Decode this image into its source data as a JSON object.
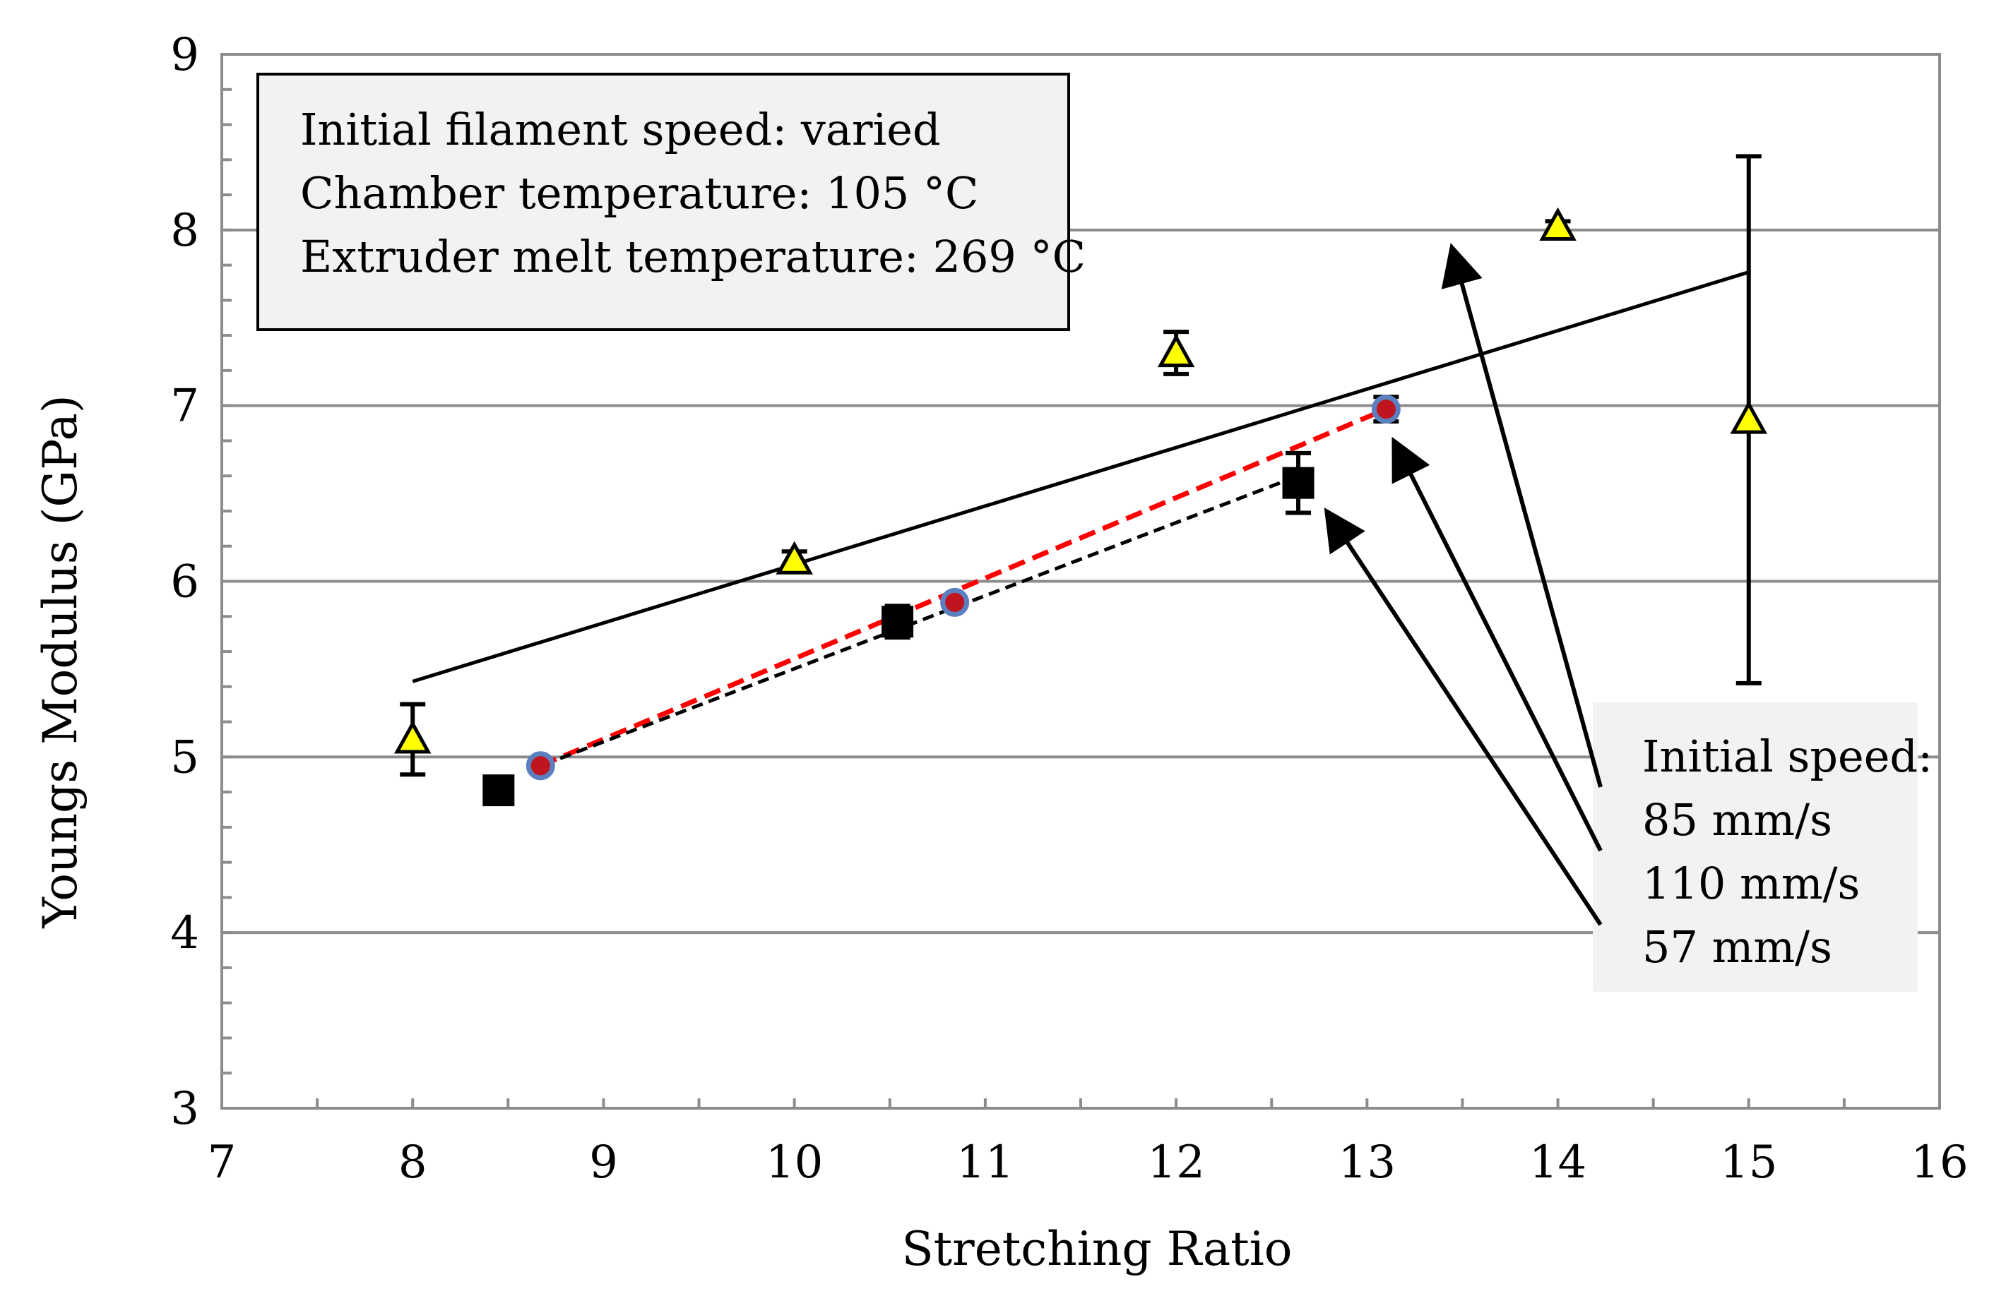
{
  "chart_data": {
    "type": "scatter",
    "title": "",
    "xlabel": "Stretching Ratio",
    "ylabel": "Youngs Modulus (GPa)",
    "xlim": [
      7,
      16
    ],
    "ylim": [
      3,
      9
    ],
    "x_ticks": [
      7,
      8,
      9,
      10,
      11,
      12,
      13,
      14,
      15,
      16
    ],
    "y_ticks": [
      3,
      4,
      5,
      6,
      7,
      8,
      9
    ],
    "x_minor_step": 0.5,
    "y_minor_step": 0.2,
    "grid": true,
    "series": [
      {
        "name": "85 mm/s",
        "marker": "triangle",
        "color": "#ffff00",
        "points": [
          {
            "x": 8.0,
            "y": 5.1,
            "err": 0.2
          },
          {
            "x": 10.0,
            "y": 6.12,
            "err": 0.05
          },
          {
            "x": 12.0,
            "y": 7.3,
            "err": 0.12
          },
          {
            "x": 14.0,
            "y": 8.02,
            "err": 0.03
          },
          {
            "x": 15.0,
            "y": 6.92,
            "err": 1.5
          }
        ],
        "trendline": {
          "from": [
            8.0,
            5.43
          ],
          "to": [
            15.0,
            7.76
          ],
          "style": "solid",
          "color": "#000000"
        }
      },
      {
        "name": "110 mm/s",
        "marker": "circle",
        "color": "#c0141e",
        "edge_color": "#5b7fbf",
        "points": [
          {
            "x": 8.67,
            "y": 4.95,
            "err": 0.02
          },
          {
            "x": 10.84,
            "y": 5.88,
            "err": 0.02
          },
          {
            "x": 13.1,
            "y": 6.98,
            "err": 0.07
          }
        ],
        "trendline": {
          "from": [
            8.67,
            4.95
          ],
          "to": [
            13.1,
            6.98
          ],
          "style": "dashed",
          "color": "#ff0000"
        }
      },
      {
        "name": "57 mm/s",
        "marker": "square",
        "color": "#000000",
        "points": [
          {
            "x": 8.45,
            "y": 4.81,
            "err": 0.07
          },
          {
            "x": 10.54,
            "y": 5.77,
            "err": 0.09
          },
          {
            "x": 12.64,
            "y": 6.56,
            "err": 0.17
          }
        ],
        "trendline": {
          "from": [
            8.6,
            4.92
          ],
          "to": [
            12.64,
            6.6
          ],
          "style": "dashed",
          "color": "#000000"
        }
      }
    ],
    "info_box": {
      "lines": [
        "Initial filament speed: varied",
        "Chamber temperature: 105 °C",
        "Extruder melt temperature: 269 °C"
      ]
    },
    "legend_box": {
      "lines": [
        "Initial speed:",
        "85 mm/s",
        "110 mm/s",
        "57 mm/s"
      ],
      "arrow_targets": [
        {
          "label": "85 mm/s",
          "x": 13.45,
          "y": 7.88
        },
        {
          "label": "110 mm/s",
          "x": 13.15,
          "y": 6.78
        },
        {
          "label": "57 mm/s",
          "x": 12.8,
          "y": 6.38
        }
      ]
    }
  }
}
